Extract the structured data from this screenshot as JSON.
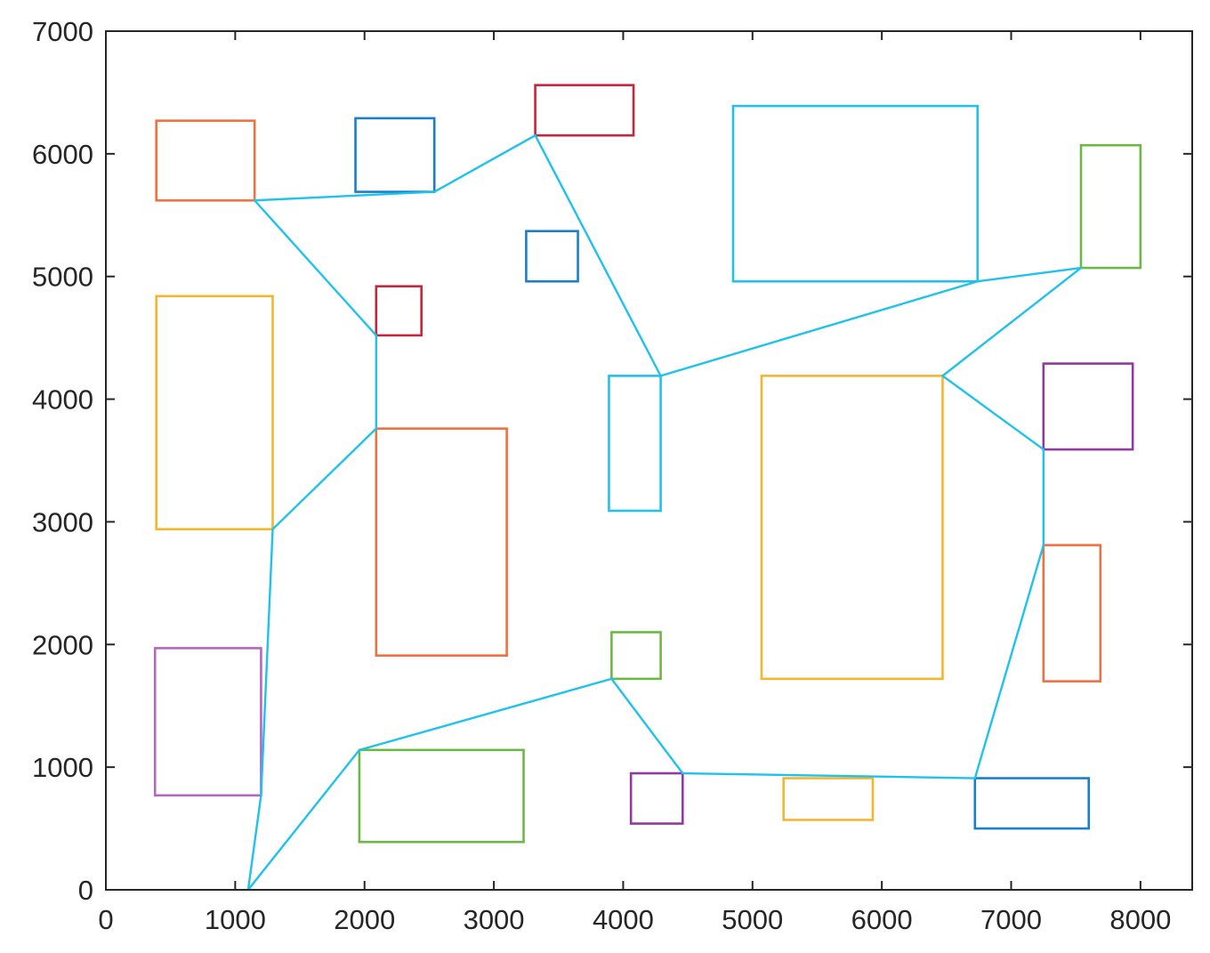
{
  "chart_data": {
    "type": "line",
    "title": "",
    "xlabel": "",
    "ylabel": "",
    "xlim": [
      0,
      8400
    ],
    "ylim": [
      0,
      7000
    ],
    "grid": false,
    "legend": "none",
    "x_ticks": [
      0,
      1000,
      2000,
      3000,
      4000,
      5000,
      6000,
      7000,
      8000
    ],
    "y_ticks": [
      0,
      1000,
      2000,
      3000,
      4000,
      5000,
      6000,
      7000
    ],
    "x_tick_labels": [
      "0",
      "1000",
      "2000",
      "3000",
      "4000",
      "5000",
      "6000",
      "7000",
      "8000"
    ],
    "y_tick_labels": [
      "0",
      "1000",
      "2000",
      "3000",
      "4000",
      "5000",
      "6000",
      "7000"
    ],
    "obstacles": [
      {
        "x1": 390,
        "y1": 5620,
        "x2": 1150,
        "y2": 6270,
        "color": "#f07040"
      },
      {
        "x1": 1930,
        "y1": 5690,
        "x2": 2540,
        "y2": 6290,
        "color": "#1a7fc6"
      },
      {
        "x1": 3320,
        "y1": 6150,
        "x2": 4080,
        "y2": 6560,
        "color": "#c6253b"
      },
      {
        "x1": 4850,
        "y1": 4960,
        "x2": 6740,
        "y2": 6390,
        "color": "#22c0ec"
      },
      {
        "x1": 7540,
        "y1": 5070,
        "x2": 8000,
        "y2": 6070,
        "color": "#6db845"
      },
      {
        "x1": 3250,
        "y1": 4960,
        "x2": 3650,
        "y2": 5370,
        "color": "#1a7fc6"
      },
      {
        "x1": 2090,
        "y1": 4520,
        "x2": 2440,
        "y2": 4920,
        "color": "#c6253b"
      },
      {
        "x1": 390,
        "y1": 2940,
        "x2": 1290,
        "y2": 4840,
        "color": "#f5b52e"
      },
      {
        "x1": 3890,
        "y1": 3090,
        "x2": 4290,
        "y2": 4190,
        "color": "#22c0ec"
      },
      {
        "x1": 5070,
        "y1": 1720,
        "x2": 6470,
        "y2": 4190,
        "color": "#f5b52e"
      },
      {
        "x1": 7250,
        "y1": 3590,
        "x2": 7940,
        "y2": 4290,
        "color": "#8e3a9e"
      },
      {
        "x1": 2090,
        "y1": 1910,
        "x2": 3100,
        "y2": 3760,
        "color": "#f07040"
      },
      {
        "x1": 7250,
        "y1": 1700,
        "x2": 7690,
        "y2": 2810,
        "color": "#f07040"
      },
      {
        "x1": 3910,
        "y1": 1720,
        "x2": 4290,
        "y2": 2100,
        "color": "#6db845"
      },
      {
        "x1": 380,
        "y1": 770,
        "x2": 1200,
        "y2": 1970,
        "color": "#b665c0"
      },
      {
        "x1": 1960,
        "y1": 390,
        "x2": 3230,
        "y2": 1140,
        "color": "#6db845"
      },
      {
        "x1": 4060,
        "y1": 540,
        "x2": 4460,
        "y2": 950,
        "color": "#8e3a9e"
      },
      {
        "x1": 5240,
        "y1": 570,
        "x2": 5930,
        "y2": 910,
        "color": "#f5b52e"
      },
      {
        "x1": 6720,
        "y1": 500,
        "x2": 7600,
        "y2": 910,
        "color": "#1a7fc6"
      }
    ],
    "series": [
      {
        "color": "#1ec2ec",
        "x": [
          1100,
          1200,
          1290,
          2090,
          2090,
          1150,
          2540,
          3320,
          4290,
          6740,
          7540,
          6470,
          7250,
          7250,
          6720,
          4460,
          3910,
          1960,
          1100
        ],
        "y": [
          0,
          770,
          2940,
          3760,
          4520,
          5620,
          5690,
          6150,
          4190,
          4960,
          5070,
          4190,
          3590,
          2810,
          910,
          950,
          1720,
          1140,
          0
        ]
      }
    ]
  }
}
